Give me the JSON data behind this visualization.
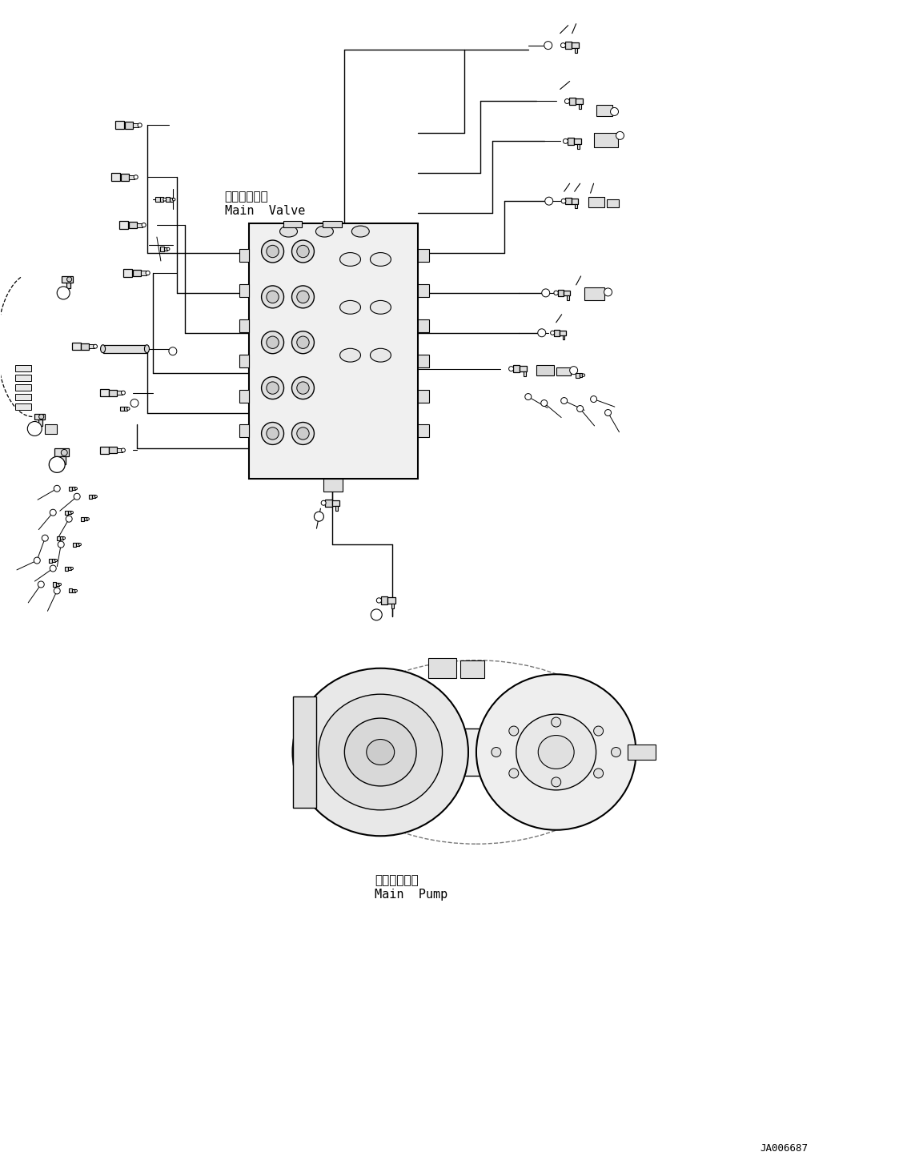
{
  "background_color": "#ffffff",
  "fig_width": 11.43,
  "fig_height": 14.59,
  "dpi": 100,
  "label_main_valve_jp": "メインバルブ",
  "label_main_valve_en": "Main  Valve",
  "label_main_pump_jp": "メインポンプ",
  "label_main_pump_en": "Main  Pump",
  "label_code": "JA006687",
  "line_color": "#000000",
  "text_color": "#000000",
  "lw_main": 1.0,
  "lw_thick": 1.5,
  "lw_thin": 0.7
}
